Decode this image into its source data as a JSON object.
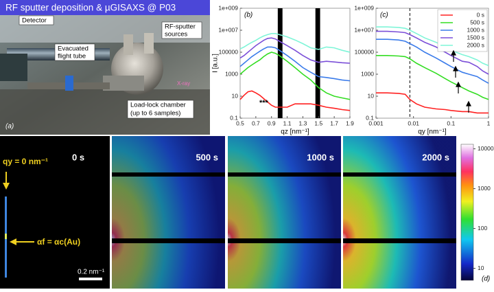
{
  "photo": {
    "title": "RF sputter deposition & µGISAXS  @ P03",
    "labels": [
      {
        "lines": [
          "Detector"
        ]
      },
      {
        "lines": [
          "RF-sputter",
          "sources"
        ]
      },
      {
        "lines": [
          "Evacuated",
          "flight tube"
        ]
      },
      {
        "lines": [
          "Load-lock chamber",
          "(up to 6 samples)"
        ]
      }
    ],
    "xray": "X-ray",
    "panel_label": "(a)"
  },
  "chart_data": [
    {
      "type": "line",
      "panel_label": "(b)",
      "xlabel": "qz [nm⁻¹]",
      "ylabel": "I [a.u.]",
      "annotations": [
        "***"
      ],
      "ylog": true,
      "masked_ranges": [
        [
          0.98,
          1.04
        ],
        [
          1.46,
          1.52
        ]
      ],
      "x": [
        0.5,
        0.55,
        0.6,
        0.65,
        0.7,
        0.75,
        0.8,
        0.85,
        0.9,
        0.95,
        1.0,
        1.1,
        1.2,
        1.3,
        1.4,
        1.5,
        1.6,
        1.7,
        1.8,
        1.9
      ],
      "xlim": [
        0.5,
        1.9
      ],
      "xticks": [
        0.5,
        0.7,
        0.9,
        1.1,
        1.3,
        1.5,
        1.7,
        1.9
      ],
      "ylim": [
        0.1,
        1000000000
      ],
      "yticks": [
        {
          "value": 1000000000,
          "label": "1e+009"
        },
        {
          "value": 10000000,
          "label": "1e+007"
        },
        100000,
        1000,
        10,
        0.1
      ],
      "series": [
        {
          "color": "#ff2020",
          "values": [
            5,
            12,
            25,
            30,
            20,
            12,
            6,
            3,
            1.5,
            1,
            1,
            1,
            2,
            2,
            2,
            1.5,
            1,
            0.8,
            0.6,
            0.5
          ]
        },
        {
          "color": "#33dd22",
          "values": [
            1000,
            2000,
            4000,
            7000,
            12000,
            20000,
            40000,
            70000,
            100000,
            80000,
            50000,
            15000,
            4000,
            1000,
            300,
            60,
            20,
            10,
            7,
            5
          ]
        },
        {
          "color": "#3a7bea",
          "values": [
            5000,
            10000,
            20000,
            40000,
            70000,
            120000,
            200000,
            300000,
            300000,
            250000,
            150000,
            50000,
            15000,
            4000,
            1500,
            600,
            500,
            400,
            300,
            250
          ]
        },
        {
          "color": "#7b4fd8",
          "values": [
            30000,
            50000,
            100000,
            200000,
            400000,
            700000,
            1200000,
            1800000,
            2000000,
            1600000,
            1000000,
            400000,
            150000,
            50000,
            20000,
            12000,
            15000,
            13000,
            11000,
            10000
          ]
        },
        {
          "color": "#7ff5d8",
          "values": [
            200000,
            300000,
            500000,
            800000,
            1200000,
            2000000,
            3000000,
            4000000,
            5000000,
            5000000,
            4000000,
            2500000,
            1300000,
            600000,
            250000,
            180000,
            300000,
            250000,
            150000,
            100000
          ]
        }
      ]
    },
    {
      "type": "line",
      "panel_label": "(c)",
      "xlabel": "qy [nm⁻¹]",
      "xlog": true,
      "ylog": true,
      "vline": 0.008,
      "legend": "top-right",
      "x": [
        0.001,
        0.002,
        0.004,
        0.006,
        0.008,
        0.012,
        0.02,
        0.04,
        0.07,
        0.1,
        0.2,
        0.3,
        0.5,
        0.7,
        1
      ],
      "xlim": [
        0.001,
        1
      ],
      "xticks": [
        0.001,
        0.01,
        0.1,
        1
      ],
      "ylim": [
        0.1,
        1000000000
      ],
      "yticks": [
        {
          "value": 1000000000,
          "label": "1e+009"
        },
        {
          "value": 10000000,
          "label": "1e+007"
        },
        100000,
        1000,
        10,
        0.1
      ],
      "series": [
        {
          "name": "0 s",
          "color": "#ff2020",
          "values": [
            20,
            20,
            18,
            15,
            5,
            2,
            1,
            0.7,
            0.6,
            0.5,
            0.4,
            0.4,
            0.3,
            0.3,
            0.3
          ]
        },
        {
          "name": "500 s",
          "color": "#33dd22",
          "values": [
            50000,
            50000,
            45000,
            40000,
            25000,
            10000,
            4000,
            1200,
            400,
            200,
            60,
            30,
            15,
            8,
            5
          ]
        },
        {
          "name": "1000 s",
          "color": "#3a7bea",
          "values": [
            1500000,
            1500000,
            1300000,
            1000000,
            600000,
            300000,
            100000,
            30000,
            10000,
            5000,
            1500,
            1000,
            600,
            300,
            150
          ]
        },
        {
          "name": "1500 s",
          "color": "#7b4fd8",
          "values": [
            8000000,
            8000000,
            7000000,
            6000000,
            4000000,
            2000000,
            800000,
            300000,
            100000,
            50000,
            15000,
            12000,
            5000,
            2000,
            1000
          ]
        },
        {
          "name": "2000 s",
          "color": "#7ff5d8",
          "values": [
            20000000,
            20000000,
            18000000,
            15000000,
            10000000,
            5000000,
            2000000,
            800000,
            300000,
            150000,
            60000,
            40000,
            20000,
            10000,
            6000
          ]
        }
      ]
    }
  ],
  "detector": {
    "frames": [
      "0 s",
      "500 s",
      "1000 s",
      "2000 s"
    ],
    "annotations": [
      "qy = 0 nm⁻¹",
      "αf = αc(Au)"
    ],
    "scale_bar": "0.2 nm⁻¹",
    "colorbar": {
      "ylim": [
        5,
        13000
      ],
      "ticks": [
        10,
        100,
        1000,
        10000
      ],
      "log": true
    },
    "panel_label": "(d)"
  }
}
